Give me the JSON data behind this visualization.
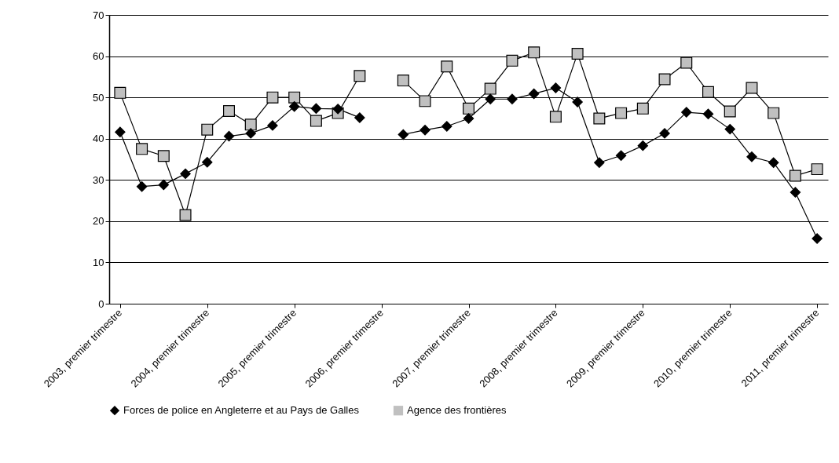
{
  "chart_data": {
    "type": "line",
    "categories": [
      "2003, premier trimestre",
      null,
      null,
      null,
      "2004, premier trimestre",
      null,
      null,
      null,
      "2005, premier trimestre",
      null,
      null,
      null,
      "2006, premier trimestre",
      null,
      null,
      null,
      "2007, premier trimestre",
      null,
      null,
      null,
      "2008, premier trimestre",
      null,
      null,
      null,
      "2009, premier trimestre",
      null,
      null,
      null,
      "2010, premier trimestre",
      null,
      null,
      null,
      "2011, premier trimestre"
    ],
    "series": [
      {
        "name": "Forces de police en Angleterre et au Pays de Galles",
        "color": "#000000",
        "marker": "diamond",
        "values": [
          41.6,
          28.4,
          28.8,
          31.5,
          34.3,
          40.6,
          41.3,
          43.2,
          47.8,
          47.3,
          47.2,
          45.1,
          null,
          41.0,
          42.1,
          43.0,
          44.9,
          49.6,
          49.6,
          50.9,
          52.3,
          48.9,
          34.2,
          35.9,
          38.3,
          41.3,
          46.4,
          46.0,
          42.3,
          35.6,
          34.2,
          27.0,
          15.8
        ]
      },
      {
        "name": "Agence des frontières",
        "color": "#c0c0c0",
        "marker": "square",
        "values": [
          51.1,
          37.5,
          35.8,
          21.5,
          42.2,
          46.7,
          43.4,
          50.0,
          50.0,
          44.3,
          46.2,
          55.2,
          null,
          54.1,
          49.1,
          57.5,
          47.3,
          52.1,
          58.9,
          60.9,
          45.3,
          60.6,
          44.9,
          46.2,
          47.3,
          54.4,
          58.4,
          51.3,
          46.6,
          52.3,
          46.2,
          31.0,
          32.6
        ]
      }
    ],
    "ylim": [
      0,
      70
    ],
    "yticks": [
      0,
      10,
      20,
      30,
      40,
      50,
      60,
      70
    ],
    "grid": "y",
    "legend": "bottom"
  }
}
